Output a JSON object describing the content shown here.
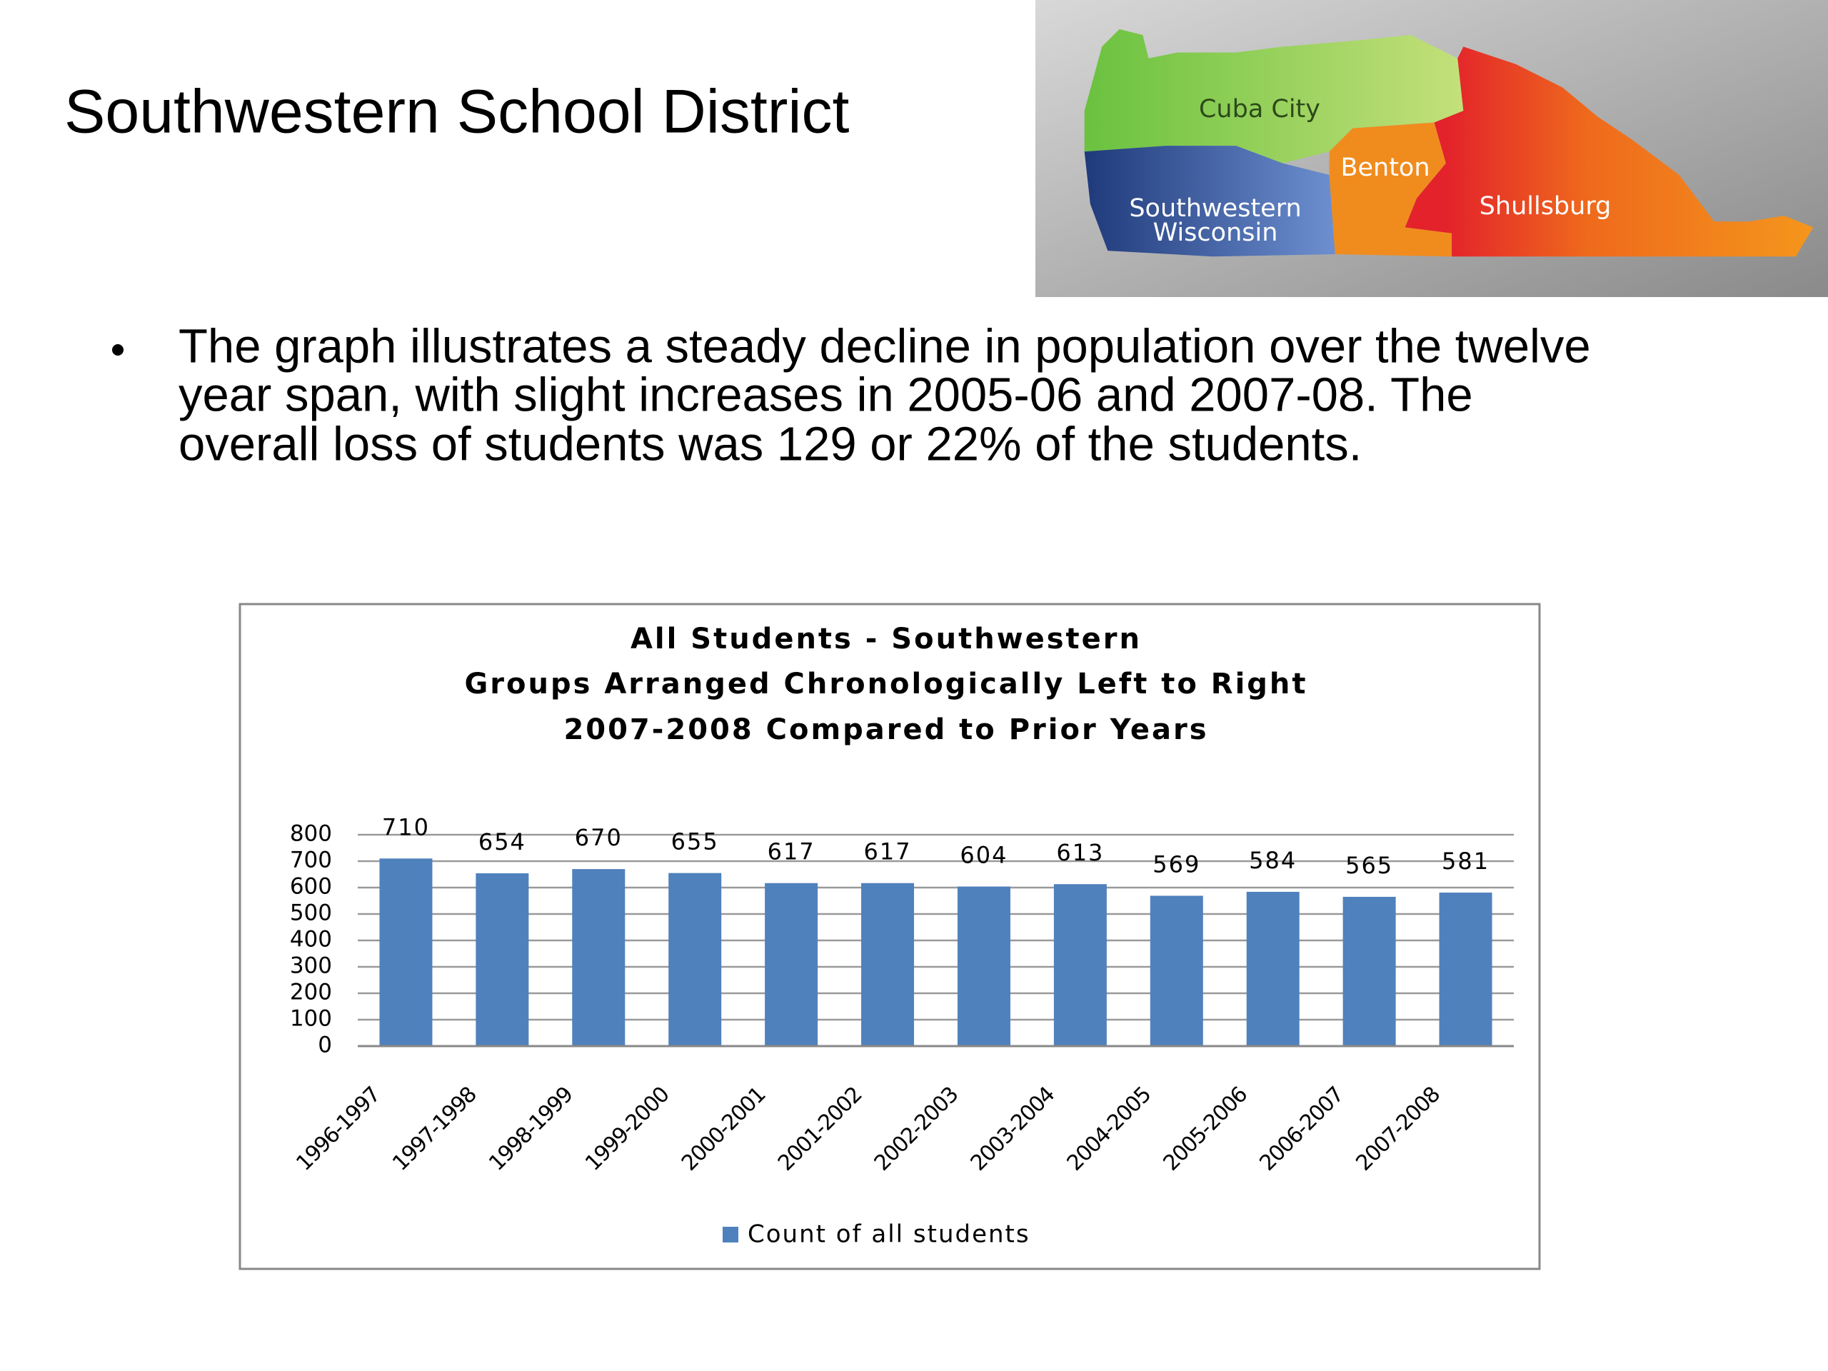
{
  "slide": {
    "title": "Southwestern School District",
    "bullet": [
      "The graph illustrates a steady decline in population over the twelve",
      "year span, with slight increases in 2005-06 and 2007-08.  The",
      "overall loss of students was 129 or 22% of the students."
    ]
  },
  "map": {
    "cuba_city": "Cuba City",
    "benton": "Benton",
    "southwestern_wisconsin": [
      "Southwestern",
      "Wisconsin"
    ],
    "shullsburg": "Shullsburg"
  },
  "chart_data": {
    "type": "bar",
    "title": "All Students - Southwestern",
    "subtitle": [
      "Groups Arranged Chronologically Left to Right",
      "2007-2008 Compared to Prior Years"
    ],
    "categories": [
      "1996-1997",
      "1997-1998",
      "1998-1999",
      "1999-2000",
      "2000-2001",
      "2001-2002",
      "2002-2003",
      "2003-2004",
      "2004-2005",
      "2005-2006",
      "2006-2007",
      "2007-2008"
    ],
    "series": [
      {
        "name": "Count of all students",
        "color": "#4f81bd",
        "values": [
          710,
          654,
          670,
          655,
          617,
          617,
          604,
          613,
          569,
          584,
          565,
          581
        ]
      }
    ],
    "ylim": [
      0,
      800
    ],
    "yticks": [
      0,
      100,
      200,
      300,
      400,
      500,
      600,
      700,
      800
    ],
    "grid": true,
    "legend": "bottom"
  }
}
